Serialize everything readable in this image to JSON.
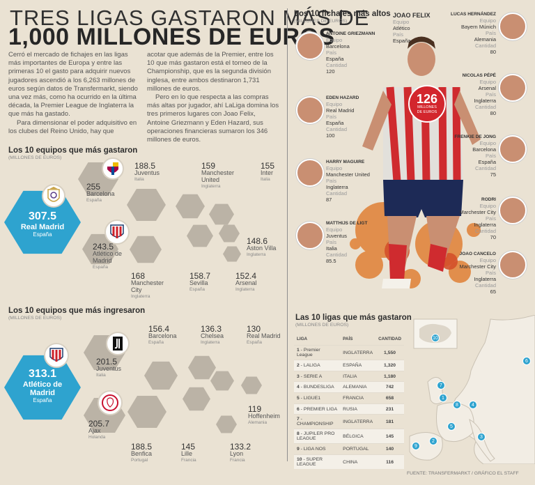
{
  "header": {
    "line1": "TRES LIGAS GASTARON MÁS DE",
    "line2": "1,000 MILLONES DE EUROS"
  },
  "intro": {
    "col1_p1": "Cerró el mercado de fichajes en las ligas más importantes de Europa y entre las primeras 10 el gasto para adquirir nuevos jugadores ascendió a los 6,263 millones de euros según datos de Transfermarkt, siendo una vez más, como ha ocurrido en la última década, la Premier League de Inglaterra la que más ha gastado.",
    "col1_p2": "Para dimensionar el poder adquisitivo en los clubes del Reino Unido, hay que",
    "col2_p1": "acotar que además de la Premier, entre los 10 que más gastaron está el torneo de la Championship, que es la segunda división inglesa, entre ambos destinaron 1,731 millones de euros.",
    "col2_p2": "Pero en lo que respecta a las compras más altas por jugador, ahí LaLiga domina los tres primeros lugares con Joao Felix, Antoine Griezmann y Eden Hazard, sus operaciones financieras sumaron los 346 millones de euros."
  },
  "spent": {
    "title": "Los 10 equipos que más gastaron",
    "sub": "(MILLONES DE EUROS)",
    "top": {
      "value": "307.5",
      "team": "Real Madrid",
      "country": "España"
    },
    "teams": [
      {
        "value": "255",
        "team": "Barcelona",
        "country": "España"
      },
      {
        "value": "243.5",
        "team": "Atlético de Madrid",
        "country": "España"
      },
      {
        "value": "188.5",
        "team": "Juventus",
        "country": "Italia"
      },
      {
        "value": "168",
        "team": "Manchester City",
        "country": "Inglaterra"
      },
      {
        "value": "159",
        "team": "Manchester United",
        "country": "Inglaterra"
      },
      {
        "value": "158.7",
        "team": "Sevilla",
        "country": "España"
      },
      {
        "value": "155",
        "team": "Inter",
        "country": "Italia"
      },
      {
        "value": "152.4",
        "team": "Arsenal",
        "country": "Inglaterra"
      },
      {
        "value": "148.6",
        "team": "Aston Villa",
        "country": "Inglaterra"
      }
    ]
  },
  "earned": {
    "title": "Los 10 equipos que más ingresaron",
    "sub": "(MILLONES DE EUROS)",
    "top": {
      "value": "313.1",
      "team": "Atlético de Madrid",
      "country": "España"
    },
    "teams": [
      {
        "value": "201.5",
        "team": "Juventus",
        "country": "Italia"
      },
      {
        "value": "205.7",
        "team": "Ajax",
        "country": "Holanda"
      },
      {
        "value": "156.4",
        "team": "Barcelona",
        "country": "España"
      },
      {
        "value": "188.5",
        "team": "Benfica",
        "country": "Portugal"
      },
      {
        "value": "136.3",
        "team": "Chelsea",
        "country": "Inglaterra"
      },
      {
        "value": "145",
        "team": "Lille",
        "country": "Francia"
      },
      {
        "value": "130",
        "team": "Real Madrid",
        "country": "España"
      },
      {
        "value": "133.2",
        "team": "Lyon",
        "country": "Francia"
      },
      {
        "value": "119",
        "team": "Hoffenheim",
        "country": "Alemania"
      }
    ]
  },
  "signings": {
    "title": "Los 10 fichajes más altos",
    "sub": "(MILLONES DE EUROS)",
    "labels": {
      "team": "Equipo",
      "country": "País",
      "amount": "Cantidad"
    },
    "feature": {
      "name": "JOAO FELIX",
      "team": "Atlético",
      "country": "España",
      "amount": "126",
      "unit": "MILLONES DE EUROS"
    },
    "left": [
      {
        "name": "ANTOINE GRIEZMANN",
        "team": "Barcelona",
        "country": "España",
        "amount": "120"
      },
      {
        "name": "EDEN HAZARD",
        "team": "Real Madrid",
        "country": "España",
        "amount": "100"
      },
      {
        "name": "HARRY MAGUIRE",
        "team": "Manchester United",
        "country": "Inglaterra",
        "amount": "87"
      },
      {
        "name": "MATTHIJS DE LIGT",
        "team": "Juventus",
        "country": "Italia",
        "amount": "85.5"
      }
    ],
    "right": [
      {
        "name": "LUCAS HERNÁNDEZ",
        "team": "Bayern Múnich",
        "country": "Alemania",
        "amount": "80"
      },
      {
        "name": "NICOLAS PÉPÉ",
        "team": "Arsenal",
        "country": "Inglaterra",
        "amount": "80"
      },
      {
        "name": "FRENKIE DE JONG",
        "team": "Barcelona",
        "country": "España",
        "amount": "75"
      },
      {
        "name": "RODRI",
        "team": "Marchester City",
        "country": "Inglaterra",
        "amount": "70"
      },
      {
        "name": "JOAO CANCELO",
        "team": "Marchester City",
        "country": "Inglaterra",
        "amount": "65"
      }
    ]
  },
  "leagues": {
    "title": "Las 10 ligas que más gastaron",
    "sub": "(MILLONES DE EUROS)",
    "headers": [
      "LIGA",
      "PAÍS",
      "CANTIDAD"
    ],
    "rows": [
      {
        "rank": "1",
        "liga": "Premier League",
        "pais": "INGLATERRA",
        "cantidad": "1,550"
      },
      {
        "rank": "2",
        "liga": "LALIGA",
        "pais": "ESPAÑA",
        "cantidad": "1,320"
      },
      {
        "rank": "3",
        "liga": "SERIE A",
        "pais": "ITALIA",
        "cantidad": "1,180"
      },
      {
        "rank": "4",
        "liga": "BUNDESLIGA",
        "pais": "ALEMANIA",
        "cantidad": "742"
      },
      {
        "rank": "5",
        "liga": "LIGUE1",
        "pais": "FRANCIA",
        "cantidad": "658"
      },
      {
        "rank": "6",
        "liga": "PREMIER LIGA",
        "pais": "RUSIA",
        "cantidad": "231"
      },
      {
        "rank": "7",
        "liga": "CHAMPIONSHIP",
        "pais": "INGLATERRA",
        "cantidad": "181"
      },
      {
        "rank": "8",
        "liga": "JUPILER PRO LEAGUE",
        "pais": "BÉLGICA",
        "cantidad": "145"
      },
      {
        "rank": "9",
        "liga": "LIGA NOS",
        "pais": "PORTUGAL",
        "cantidad": "140"
      },
      {
        "rank": "10",
        "liga": "SUPER LEAGUE",
        "pais": "CHINA",
        "cantidad": "116"
      }
    ],
    "map_dots": [
      "10",
      "6",
      "7",
      "1",
      "8",
      "4",
      "5",
      "3",
      "2",
      "9"
    ]
  },
  "footer": {
    "source": "FUENTE: TRANSFERMARKT / GRÁFICO EL STAFF"
  },
  "colors": {
    "accent": "#2ea3cf",
    "background": "#eae2d3",
    "hex_grey": "#bbb3a6",
    "badge_red": "#d3262d"
  }
}
